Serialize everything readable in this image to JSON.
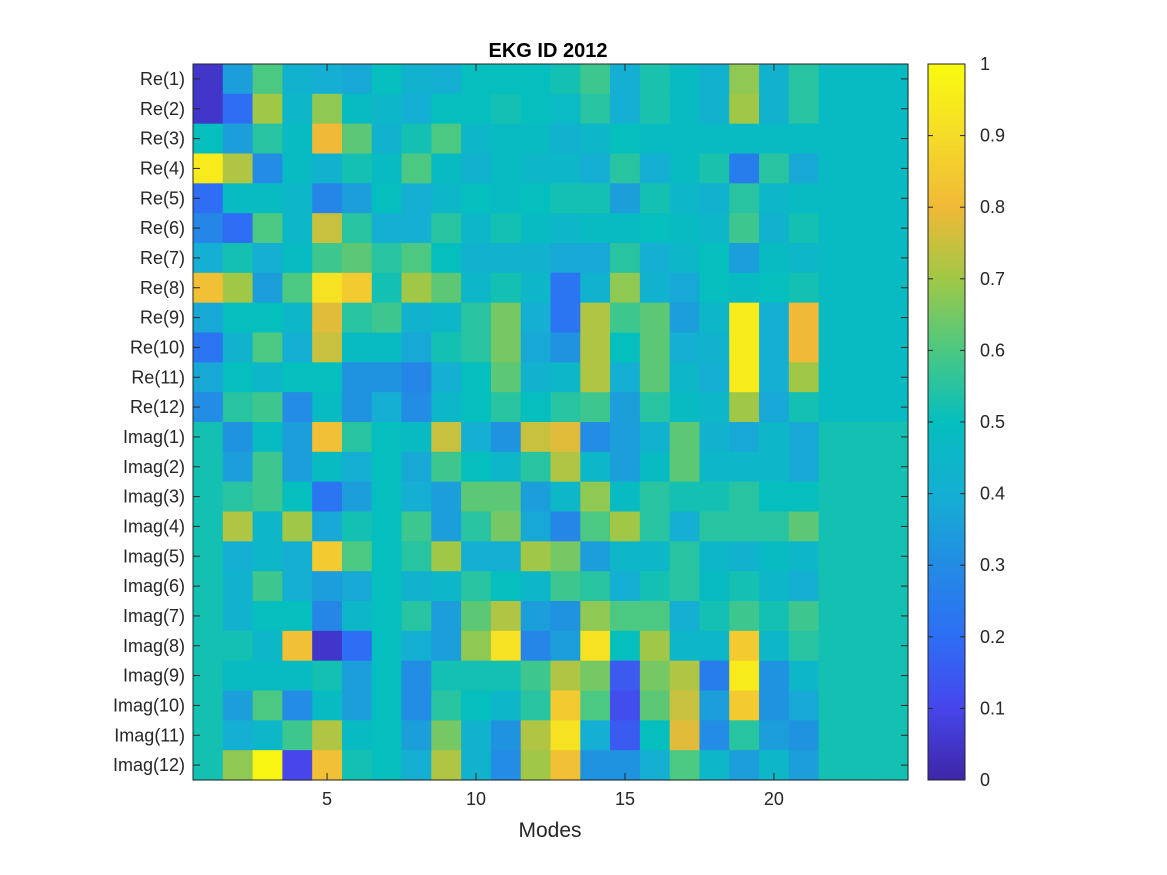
{
  "chart_data": {
    "type": "heatmap",
    "title": "EKG ID 2012",
    "xlabel": "Modes",
    "ylabel": "",
    "x_ticks": [
      5,
      10,
      15,
      20
    ],
    "x_range": [
      0.5,
      24.5
    ],
    "row_labels": [
      "Re(1)",
      "Re(2)",
      "Re(3)",
      "Re(4)",
      "Re(5)",
      "Re(6)",
      "Re(7)",
      "Re(8)",
      "Re(9)",
      "Re(10)",
      "Re(11)",
      "Re(12)",
      "Imag(1)",
      "Imag(2)",
      "Imag(3)",
      "Imag(4)",
      "Imag(5)",
      "Imag(6)",
      "Imag(7)",
      "Imag(8)",
      "Imag(9)",
      "Imag(10)",
      "Imag(11)",
      "Imag(12)"
    ],
    "colorbar": {
      "min": 0,
      "max": 1,
      "ticks": [
        0,
        0.1,
        0.2,
        0.3,
        0.4,
        0.5,
        0.6,
        0.7,
        0.8,
        0.9,
        1
      ],
      "tick_labels": [
        "0",
        "0.1",
        "0.2",
        "0.3",
        "0.4",
        "0.5",
        "0.6",
        "0.7",
        "0.8",
        "0.9",
        "1"
      ],
      "colormap": "parula"
    },
    "values": [
      [
        0.05,
        0.35,
        0.6,
        0.42,
        0.4,
        0.38,
        0.5,
        0.42,
        0.4,
        0.5,
        0.5,
        0.5,
        0.52,
        0.58,
        0.4,
        0.53,
        0.48,
        0.42,
        0.68,
        0.42,
        0.55,
        0.48,
        0.48,
        0.48
      ],
      [
        0.05,
        0.2,
        0.7,
        0.45,
        0.68,
        0.48,
        0.45,
        0.4,
        0.5,
        0.5,
        0.52,
        0.5,
        0.47,
        0.55,
        0.4,
        0.53,
        0.48,
        0.42,
        0.7,
        0.42,
        0.55,
        0.48,
        0.48,
        0.48
      ],
      [
        0.5,
        0.35,
        0.55,
        0.48,
        0.8,
        0.62,
        0.42,
        0.52,
        0.6,
        0.45,
        0.48,
        0.48,
        0.42,
        0.45,
        0.5,
        0.48,
        0.48,
        0.48,
        0.48,
        0.48,
        0.48,
        0.48,
        0.48,
        0.48
      ],
      [
        0.95,
        0.72,
        0.3,
        0.48,
        0.42,
        0.52,
        0.48,
        0.6,
        0.48,
        0.42,
        0.48,
        0.45,
        0.45,
        0.4,
        0.55,
        0.4,
        0.48,
        0.53,
        0.25,
        0.55,
        0.38,
        0.48,
        0.48,
        0.48
      ],
      [
        0.2,
        0.48,
        0.48,
        0.45,
        0.28,
        0.35,
        0.5,
        0.4,
        0.45,
        0.5,
        0.48,
        0.5,
        0.52,
        0.52,
        0.35,
        0.52,
        0.45,
        0.42,
        0.55,
        0.45,
        0.48,
        0.48,
        0.48,
        0.48
      ],
      [
        0.28,
        0.2,
        0.6,
        0.45,
        0.75,
        0.55,
        0.4,
        0.4,
        0.55,
        0.45,
        0.52,
        0.48,
        0.45,
        0.48,
        0.48,
        0.5,
        0.48,
        0.45,
        0.58,
        0.42,
        0.52,
        0.48,
        0.48,
        0.48
      ],
      [
        0.4,
        0.52,
        0.4,
        0.48,
        0.58,
        0.62,
        0.55,
        0.6,
        0.5,
        0.42,
        0.42,
        0.42,
        0.38,
        0.38,
        0.55,
        0.4,
        0.45,
        0.5,
        0.35,
        0.48,
        0.45,
        0.48,
        0.48,
        0.48
      ],
      [
        0.82,
        0.7,
        0.35,
        0.6,
        0.92,
        0.85,
        0.52,
        0.7,
        0.62,
        0.45,
        0.52,
        0.45,
        0.22,
        0.42,
        0.68,
        0.42,
        0.38,
        0.5,
        0.48,
        0.5,
        0.52,
        0.48,
        0.48,
        0.48
      ],
      [
        0.38,
        0.5,
        0.5,
        0.45,
        0.78,
        0.55,
        0.58,
        0.42,
        0.45,
        0.55,
        0.65,
        0.4,
        0.22,
        0.72,
        0.58,
        0.62,
        0.35,
        0.45,
        0.95,
        0.4,
        0.8,
        0.48,
        0.48,
        0.48
      ],
      [
        0.22,
        0.42,
        0.6,
        0.4,
        0.75,
        0.48,
        0.48,
        0.38,
        0.52,
        0.55,
        0.65,
        0.38,
        0.32,
        0.72,
        0.5,
        0.62,
        0.4,
        0.42,
        0.95,
        0.4,
        0.8,
        0.48,
        0.48,
        0.48
      ],
      [
        0.38,
        0.5,
        0.45,
        0.5,
        0.5,
        0.32,
        0.32,
        0.28,
        0.4,
        0.5,
        0.62,
        0.42,
        0.45,
        0.72,
        0.4,
        0.62,
        0.45,
        0.4,
        0.95,
        0.4,
        0.7,
        0.48,
        0.48,
        0.48
      ],
      [
        0.3,
        0.55,
        0.58,
        0.3,
        0.48,
        0.32,
        0.4,
        0.3,
        0.45,
        0.5,
        0.55,
        0.5,
        0.55,
        0.58,
        0.35,
        0.55,
        0.48,
        0.45,
        0.7,
        0.38,
        0.52,
        0.48,
        0.48,
        0.48
      ],
      [
        0.52,
        0.32,
        0.48,
        0.35,
        0.82,
        0.55,
        0.5,
        0.48,
        0.75,
        0.4,
        0.32,
        0.75,
        0.78,
        0.3,
        0.35,
        0.42,
        0.62,
        0.42,
        0.38,
        0.45,
        0.38,
        0.52,
        0.52,
        0.52
      ],
      [
        0.52,
        0.35,
        0.58,
        0.35,
        0.48,
        0.4,
        0.5,
        0.38,
        0.58,
        0.5,
        0.45,
        0.55,
        0.72,
        0.45,
        0.35,
        0.48,
        0.62,
        0.45,
        0.45,
        0.45,
        0.38,
        0.52,
        0.52,
        0.52
      ],
      [
        0.52,
        0.55,
        0.58,
        0.5,
        0.22,
        0.35,
        0.5,
        0.4,
        0.35,
        0.62,
        0.62,
        0.35,
        0.45,
        0.68,
        0.48,
        0.55,
        0.52,
        0.52,
        0.55,
        0.5,
        0.5,
        0.52,
        0.52,
        0.52
      ],
      [
        0.52,
        0.72,
        0.45,
        0.7,
        0.38,
        0.52,
        0.5,
        0.58,
        0.35,
        0.55,
        0.65,
        0.38,
        0.28,
        0.6,
        0.7,
        0.55,
        0.4,
        0.55,
        0.55,
        0.55,
        0.62,
        0.52,
        0.52,
        0.52
      ],
      [
        0.52,
        0.4,
        0.45,
        0.4,
        0.85,
        0.6,
        0.5,
        0.55,
        0.7,
        0.4,
        0.4,
        0.7,
        0.65,
        0.35,
        0.45,
        0.45,
        0.55,
        0.45,
        0.42,
        0.48,
        0.45,
        0.52,
        0.52,
        0.52
      ],
      [
        0.52,
        0.42,
        0.58,
        0.4,
        0.35,
        0.38,
        0.5,
        0.42,
        0.45,
        0.55,
        0.5,
        0.45,
        0.58,
        0.55,
        0.4,
        0.52,
        0.55,
        0.48,
        0.52,
        0.45,
        0.4,
        0.52,
        0.52,
        0.52
      ],
      [
        0.52,
        0.42,
        0.5,
        0.5,
        0.28,
        0.45,
        0.5,
        0.55,
        0.35,
        0.62,
        0.72,
        0.35,
        0.32,
        0.68,
        0.6,
        0.6,
        0.4,
        0.52,
        0.58,
        0.52,
        0.58,
        0.52,
        0.52,
        0.52
      ],
      [
        0.52,
        0.52,
        0.45,
        0.82,
        0.05,
        0.2,
        0.5,
        0.4,
        0.35,
        0.68,
        0.92,
        0.28,
        0.35,
        0.92,
        0.5,
        0.7,
        0.45,
        0.45,
        0.85,
        0.45,
        0.55,
        0.52,
        0.52,
        0.52
      ],
      [
        0.52,
        0.48,
        0.48,
        0.48,
        0.52,
        0.35,
        0.5,
        0.3,
        0.52,
        0.52,
        0.52,
        0.58,
        0.72,
        0.65,
        0.15,
        0.65,
        0.72,
        0.25,
        0.95,
        0.32,
        0.45,
        0.52,
        0.52,
        0.52
      ],
      [
        0.52,
        0.35,
        0.6,
        0.3,
        0.48,
        0.35,
        0.5,
        0.3,
        0.55,
        0.5,
        0.45,
        0.55,
        0.85,
        0.6,
        0.12,
        0.62,
        0.75,
        0.35,
        0.85,
        0.32,
        0.38,
        0.52,
        0.52,
        0.52
      ],
      [
        0.52,
        0.4,
        0.45,
        0.58,
        0.72,
        0.48,
        0.5,
        0.35,
        0.65,
        0.42,
        0.32,
        0.72,
        0.92,
        0.4,
        0.15,
        0.5,
        0.78,
        0.3,
        0.55,
        0.35,
        0.32,
        0.52,
        0.52,
        0.52
      ],
      [
        0.52,
        0.68,
        0.98,
        0.1,
        0.82,
        0.52,
        0.5,
        0.4,
        0.72,
        0.42,
        0.3,
        0.7,
        0.82,
        0.32,
        0.32,
        0.4,
        0.6,
        0.45,
        0.35,
        0.45,
        0.35,
        0.52,
        0.52,
        0.52
      ]
    ]
  }
}
